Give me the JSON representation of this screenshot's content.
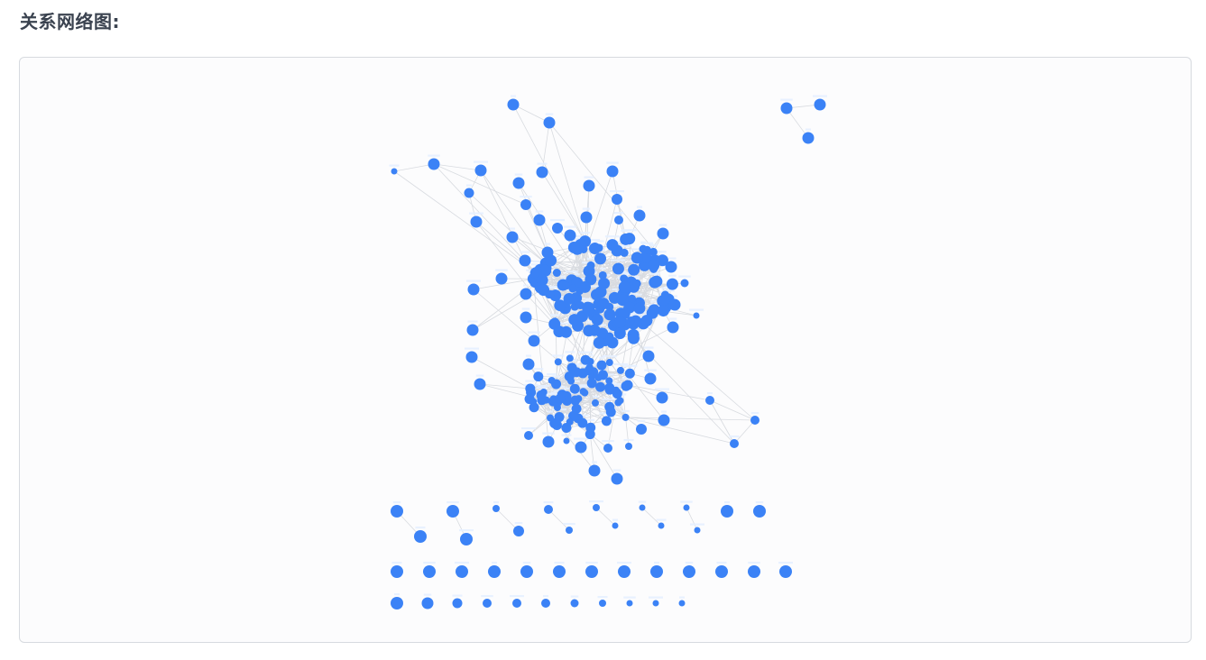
{
  "page": {
    "title": "关系网络图:"
  },
  "graph": {
    "node_color": "#3b82f6",
    "edge_color": "#d8dbe0",
    "panel_background": "#fcfcfd",
    "panel_border": "#d7dadf"
  }
}
